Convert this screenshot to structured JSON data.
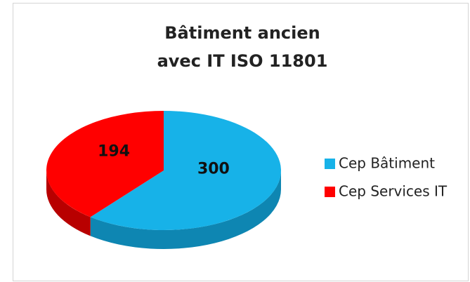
{
  "chart_data": {
    "type": "pie",
    "title": [
      "Bâtiment ancien",
      "avec IT ISO 11801"
    ],
    "categories": [
      "Cep Bâtiment",
      "Cep Services IT"
    ],
    "values": [
      300,
      194
    ],
    "colors": [
      "#17b2e8",
      "#ff0000"
    ],
    "side_colors": [
      "#0e86b2",
      "#b80000"
    ],
    "legend": "right"
  }
}
